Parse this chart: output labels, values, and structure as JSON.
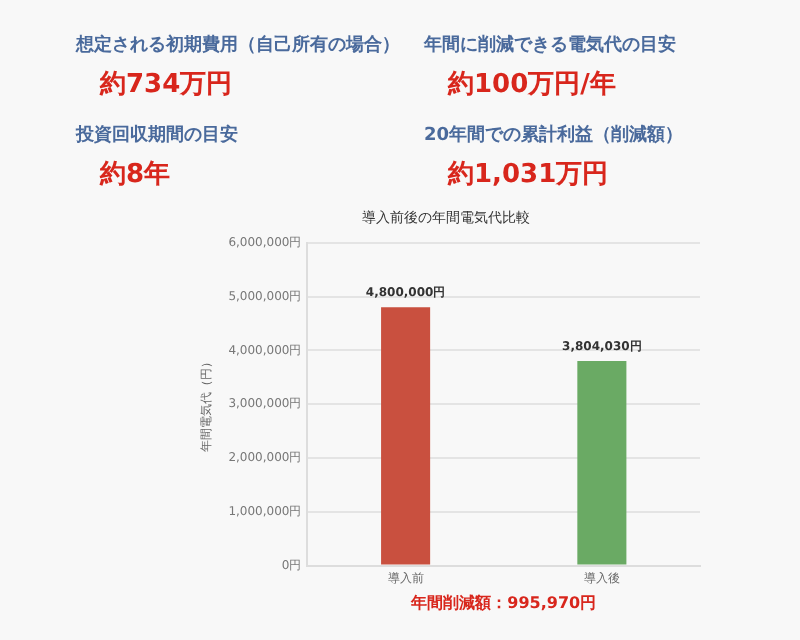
{
  "chart_data": [
    {
      "type": "other",
      "annotations": [
        "想定される初期費用（自己所有の場合）",
        "約734万円",
        "年間に削減できる電気代の目安",
        "約100万円/年",
        "投資回収期間の目安",
        "約8年",
        "20年間での累計利益（削減額）",
        "約1,031万円"
      ]
    },
    {
      "type": "bar",
      "title": "導入前後の年間電気代比較",
      "ylabel": "年間電気代（円）",
      "categories": [
        "導入前",
        "導入後"
      ],
      "values": [
        4800000,
        3804030
      ],
      "colors": [
        "#c9503f",
        "#6aaa64"
      ],
      "value_labels": [
        "4,800,000円",
        "3,804,030円"
      ],
      "ylim": [
        0,
        6000000
      ],
      "yticks": [
        {
          "value": 0,
          "label": "0円"
        },
        {
          "value": 1000000,
          "label": "1,000,000円"
        },
        {
          "value": 2000000,
          "label": "2,000,000円"
        },
        {
          "value": 3000000,
          "label": "3,000,000円"
        },
        {
          "value": 4000000,
          "label": "4,000,000円"
        },
        {
          "value": 5000000,
          "label": "5,000,000円"
        },
        {
          "value": 6000000,
          "label": "6,000,000円"
        }
      ],
      "grid": "y",
      "legend": false,
      "annotations": [
        "年間削減額：995,970円"
      ]
    }
  ]
}
